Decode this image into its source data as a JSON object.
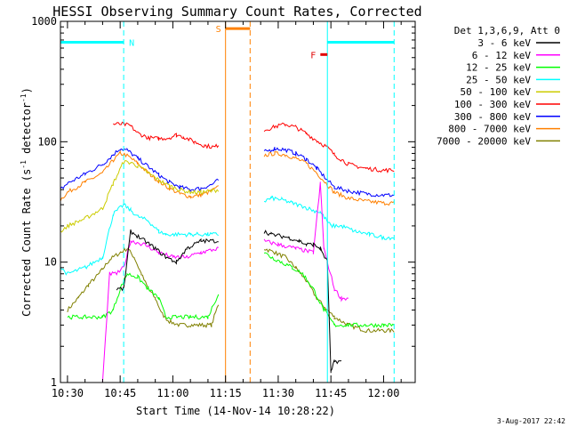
{
  "chart_data": {
    "type": "line",
    "title": "HESSI Observing Summary Count Rates, Corrected",
    "xlabel": "Start Time (14-Nov-14 10:28:22)",
    "ylabel": "Corrected Count Rate (s⁻¹ detector⁻¹)",
    "ylabel_main": "Corrected Count Rate (s",
    "ylabel_sup1": "-1",
    "ylabel_mid": " detector",
    "ylabel_sup2": "-1",
    "ylabel_end": ")",
    "yscale": "log",
    "ylim": [
      1,
      1000
    ],
    "xlim": [
      "10:28",
      "12:09"
    ],
    "x_ticks": [
      "10:30",
      "10:45",
      "11:00",
      "11:15",
      "11:30",
      "11:45",
      "12:00"
    ],
    "y_ticks": [
      "1",
      "10",
      "100",
      "1000"
    ],
    "footer_date": "3-Aug-2017 22:42",
    "legend": {
      "header": "Det 1,3,6,9, Att 0",
      "placement": "right"
    },
    "series": [
      {
        "name": "3 - 6 keV",
        "color": "#000000",
        "x": [
          "10:28",
          "10:40",
          "10:41",
          "10:44",
          "10:46",
          "10:48",
          "10:52",
          "10:55",
          "10:58",
          "11:01",
          "11:04",
          "11:08",
          "11:13",
          "11:14",
          "11:25",
          "11:26",
          "11:28",
          "11:33",
          "11:36",
          "11:38",
          "11:40",
          "11:42",
          "11:44",
          "11:45",
          "11:46",
          "11:48"
        ],
        "y": [
          null,
          null,
          null,
          6,
          6,
          18,
          15,
          13,
          11,
          10,
          13,
          15,
          15,
          null,
          null,
          18,
          17,
          16,
          15,
          14,
          14,
          13,
          10,
          1.2,
          1.5,
          1.5
        ]
      },
      {
        "name": "6 - 12 keV",
        "color": "#ff00ff",
        "x": [
          "10:40",
          "10:42",
          "10:44",
          "10:46",
          "10:48",
          "10:52",
          "10:56",
          "11:00",
          "11:04",
          "11:08",
          "11:13",
          "11:14",
          "11:25",
          "11:26",
          "11:30",
          "11:35",
          "11:40",
          "11:42",
          "11:43",
          "11:44",
          "11:46",
          "11:48",
          "11:50"
        ],
        "y": [
          1,
          8,
          8,
          9,
          15,
          14,
          12,
          11,
          11,
          12,
          13,
          null,
          null,
          15,
          14,
          13,
          12,
          45,
          13,
          10,
          6,
          5,
          5
        ]
      },
      {
        "name": "12 - 25 keV",
        "color": "#00ff00",
        "x": [
          "10:30",
          "10:35",
          "10:40",
          "10:43",
          "10:45",
          "10:47",
          "10:50",
          "10:53",
          "10:56",
          "10:58",
          "11:00",
          "11:05",
          "11:10",
          "11:13",
          "11:14",
          "11:25",
          "11:26",
          "11:28",
          "11:31",
          "11:34",
          "11:37",
          "11:40",
          "11:43",
          "11:46",
          "11:50",
          "11:55",
          "12:00",
          "12:03"
        ],
        "y": [
          3.5,
          3.5,
          3.5,
          4,
          6,
          8,
          7.5,
          6,
          5,
          3.5,
          3.5,
          3.5,
          3.5,
          5.5,
          null,
          null,
          12,
          11,
          10,
          9,
          8,
          6,
          4,
          3,
          3,
          3,
          3,
          3
        ]
      },
      {
        "name": "25 - 50 keV",
        "color": "#00ffff",
        "x": [
          "10:28",
          "10:30",
          "10:35",
          "10:40",
          "10:43",
          "10:46",
          "10:48",
          "10:50",
          "10:53",
          "10:56",
          "10:58",
          "11:00",
          "11:05",
          "11:10",
          "11:13",
          "11:14",
          "11:25",
          "11:26",
          "11:28",
          "11:31",
          "11:34",
          "11:37",
          "11:40",
          "11:42",
          "11:45",
          "11:48",
          "11:52",
          "11:56",
          "12:00",
          "12:03"
        ],
        "y": [
          9,
          8,
          9,
          11,
          25,
          30,
          27,
          24,
          22,
          18,
          17,
          17,
          17,
          17,
          17,
          null,
          null,
          32,
          34,
          33,
          31,
          29,
          27,
          26,
          20,
          20,
          18,
          17,
          16,
          16
        ]
      },
      {
        "name": "50 - 100 keV",
        "color": "#cccc00",
        "x": [
          "10:28",
          "10:30",
          "10:35",
          "10:40",
          "10:43",
          "10:46",
          "10:48",
          "10:50",
          "10:53",
          "10:56",
          "10:59",
          "11:02",
          "11:05",
          "11:08",
          "11:11",
          "11:13",
          "11:14"
        ],
        "y": [
          18,
          20,
          23,
          28,
          45,
          68,
          67,
          63,
          55,
          48,
          43,
          40,
          38,
          38,
          39,
          40,
          null
        ]
      },
      {
        "name": "100 - 300 keV",
        "color": "#ff0000",
        "x": [
          "10:43",
          "10:46",
          "10:48",
          "10:50",
          "10:53",
          "10:56",
          "10:59",
          "11:01",
          "11:03",
          "11:06",
          "11:09",
          "11:12",
          "11:13",
          "11:14",
          "11:25",
          "11:26",
          "11:29",
          "11:32",
          "11:35",
          "11:38",
          "11:41",
          "11:44",
          "11:46",
          "11:50",
          "11:55",
          "12:00",
          "12:03"
        ],
        "y": [
          140,
          140,
          135,
          118,
          108,
          106,
          108,
          114,
          110,
          100,
          93,
          90,
          95,
          null,
          null,
          125,
          133,
          140,
          132,
          117,
          102,
          90,
          78,
          65,
          60,
          58,
          58
        ]
      },
      {
        "name": "300 - 800 keV",
        "color": "#0000ff",
        "x": [
          "10:28",
          "10:30",
          "10:35",
          "10:40",
          "10:43",
          "10:45",
          "10:47",
          "10:50",
          "10:53",
          "10:56",
          "10:59",
          "11:02",
          "11:05",
          "11:08",
          "11:11",
          "11:13",
          "11:14",
          "11:25",
          "11:26",
          "11:29",
          "11:32",
          "11:35",
          "11:38",
          "11:41",
          "11:44",
          "11:46",
          "11:50",
          "11:55",
          "12:00",
          "12:03"
        ],
        "y": [
          40,
          45,
          54,
          65,
          78,
          88,
          85,
          73,
          62,
          53,
          46,
          42,
          40,
          41,
          44,
          48,
          null,
          null,
          82,
          88,
          86,
          80,
          72,
          60,
          48,
          42,
          39,
          37,
          36,
          36
        ]
      },
      {
        "name": "800 - 7000 keV",
        "color": "#ff8000",
        "x": [
          "10:28",
          "10:30",
          "10:35",
          "10:40",
          "10:43",
          "10:45",
          "10:47",
          "10:50",
          "10:53",
          "10:56",
          "10:59",
          "11:02",
          "11:05",
          "11:08",
          "11:11",
          "11:13",
          "11:14",
          "11:25",
          "11:26",
          "11:29",
          "11:32",
          "11:35",
          "11:38",
          "11:41",
          "11:44",
          "11:46",
          "11:50",
          "11:55",
          "12:00",
          "12:03"
        ],
        "y": [
          33,
          38,
          46,
          55,
          70,
          80,
          77,
          66,
          55,
          47,
          41,
          37,
          35,
          36,
          39,
          42,
          null,
          null,
          77,
          80,
          78,
          73,
          66,
          55,
          44,
          38,
          34,
          32,
          31,
          31
        ]
      },
      {
        "name": "7000 - 20000 keV",
        "color": "#808000",
        "x": [
          "10:30",
          "10:33",
          "10:36",
          "10:39",
          "10:42",
          "10:45",
          "10:47",
          "10:49",
          "10:51",
          "10:53",
          "10:55",
          "10:57",
          "10:59",
          "11:02",
          "11:05",
          "11:08",
          "11:11",
          "11:13",
          "11:14",
          "11:25",
          "11:26",
          "11:29",
          "11:32",
          "11:35",
          "11:38",
          "11:41",
          "11:44",
          "11:46",
          "11:50",
          "11:55",
          "12:00",
          "12:03"
        ],
        "y": [
          4,
          5,
          6.5,
          8,
          10.5,
          12,
          13,
          11,
          8,
          6,
          5,
          3.7,
          3.2,
          3,
          3,
          3,
          3,
          4.5,
          null,
          null,
          13,
          12,
          11,
          9,
          7,
          5,
          4,
          3.5,
          3,
          2.7,
          2.7,
          2.7
        ]
      }
    ],
    "flags": [
      {
        "label": "N",
        "color": "#00ffff",
        "segments": [
          [
            "10:28",
            "10:46"
          ],
          [
            "11:44",
            "12:03"
          ]
        ],
        "level": 670
      },
      {
        "label": "S",
        "color": "#ff8000",
        "segments": [
          [
            "11:15",
            "11:22"
          ]
        ],
        "level": 870
      },
      {
        "label": "F",
        "color": "#e00000",
        "segments": [
          [
            "11:42",
            "11:44"
          ]
        ],
        "level": 530
      }
    ],
    "vlines": [
      {
        "x": "10:46",
        "color": "#00ffff",
        "style": "dashed"
      },
      {
        "x": "11:15",
        "color": "#ff8000",
        "style": "solid"
      },
      {
        "x": "11:22",
        "color": "#ff8000",
        "style": "dashed"
      },
      {
        "x": "11:44",
        "color": "#00ffff",
        "style": "solid"
      },
      {
        "x": "12:03",
        "color": "#00ffff",
        "style": "dashed"
      }
    ]
  }
}
